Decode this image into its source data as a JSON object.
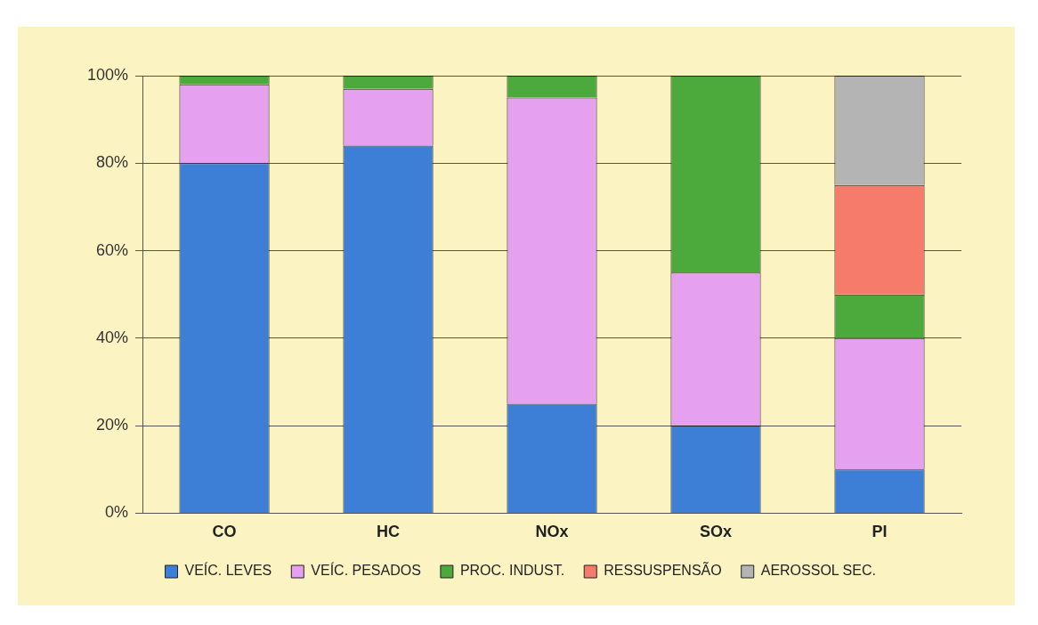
{
  "chart_data": {
    "type": "bar",
    "stacked": true,
    "categories": [
      "CO",
      "HC",
      "NOx",
      "SOx",
      "PI"
    ],
    "series": [
      {
        "name": "VEÍC. LEVES",
        "color": "#3d7fd6",
        "values": [
          80,
          84,
          25,
          20,
          10
        ]
      },
      {
        "name": "VEÍC. PESADOS",
        "color": "#e6a0f0",
        "values": [
          18,
          13,
          70,
          35,
          30
        ]
      },
      {
        "name": "PROC. INDUST.",
        "color": "#4caa3c",
        "values": [
          2,
          3,
          5,
          45,
          10
        ]
      },
      {
        "name": "RESSUSPENSÃO",
        "color": "#f77b6b",
        "values": [
          0,
          0,
          0,
          0,
          25
        ]
      },
      {
        "name": "AEROSSOL SEC.",
        "color": "#b4b4b4",
        "values": [
          0,
          0,
          0,
          0,
          25
        ]
      }
    ],
    "ylim": [
      0,
      100
    ],
    "yticks": [
      {
        "value": 0,
        "label": "0%"
      },
      {
        "value": 20,
        "label": "20%"
      },
      {
        "value": 40,
        "label": "40%"
      },
      {
        "value": 60,
        "label": "60%"
      },
      {
        "value": 80,
        "label": "80%"
      },
      {
        "value": 100,
        "label": "100%"
      }
    ],
    "grid": "y",
    "legend": "bottom"
  }
}
